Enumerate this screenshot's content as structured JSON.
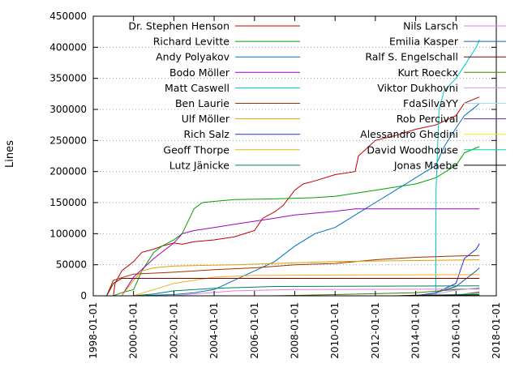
{
  "chart_data": {
    "type": "line",
    "title": "",
    "xlabel": "",
    "ylabel": "Lines",
    "xlim": [
      "1998-01-01",
      "2018-01-01"
    ],
    "ylim": [
      0,
      450000
    ],
    "x_ticks": [
      "1998-01-01",
      "2000-01-01",
      "2002-01-01",
      "2004-01-01",
      "2006-01-01",
      "2008-01-01",
      "2010-01-01",
      "2012-01-01",
      "2014-01-01",
      "2016-01-01",
      "2018-01-01"
    ],
    "y_ticks": [
      0,
      50000,
      100000,
      150000,
      200000,
      250000,
      300000,
      350000,
      400000,
      450000
    ],
    "y_tick_labels": [
      "0",
      "50000",
      "100000",
      "150000",
      "200000",
      "250000",
      "300000",
      "350000",
      "400000",
      "450000"
    ],
    "grid": "horizontal dotted",
    "legend_placement": "inside, top (two columns)",
    "series": [
      {
        "name": "Dr. Stephen Henson",
        "color": "#c00000",
        "points": [
          [
            "1999-01-01",
            0
          ],
          [
            "1999-02-01",
            20000
          ],
          [
            "1999-06-01",
            40000
          ],
          [
            "2000-01-01",
            55000
          ],
          [
            "2000-06-01",
            70000
          ],
          [
            "2001-01-01",
            75000
          ],
          [
            "2001-06-01",
            80000
          ],
          [
            "2002-01-01",
            85000
          ],
          [
            "2002-06-01",
            83000
          ],
          [
            "2003-01-01",
            87000
          ],
          [
            "2004-01-01",
            90000
          ],
          [
            "2005-01-01",
            95000
          ],
          [
            "2006-01-01",
            105000
          ],
          [
            "2006-06-01",
            125000
          ],
          [
            "2007-01-01",
            135000
          ],
          [
            "2007-06-01",
            145000
          ],
          [
            "2008-01-01",
            170000
          ],
          [
            "2008-06-01",
            180000
          ],
          [
            "2009-01-01",
            185000
          ],
          [
            "2010-01-01",
            195000
          ],
          [
            "2011-01-01",
            200000
          ],
          [
            "2011-03-01",
            225000
          ],
          [
            "2012-01-01",
            250000
          ],
          [
            "2013-01-01",
            258000
          ],
          [
            "2014-01-01",
            268000
          ],
          [
            "2015-01-01",
            275000
          ],
          [
            "2016-01-01",
            290000
          ],
          [
            "2016-06-01",
            310000
          ],
          [
            "2017-01-01",
            318000
          ],
          [
            "2017-03-01",
            320000
          ]
        ]
      },
      {
        "name": "Richard Levitte",
        "color": "#00a000",
        "points": [
          [
            "1999-01-01",
            0
          ],
          [
            "1999-06-01",
            5000
          ],
          [
            "2000-01-01",
            10000
          ],
          [
            "2000-06-01",
            40000
          ],
          [
            "2001-01-01",
            70000
          ],
          [
            "2001-06-01",
            80000
          ],
          [
            "2002-01-01",
            90000
          ],
          [
            "2002-06-01",
            100000
          ],
          [
            "2003-01-01",
            140000
          ],
          [
            "2003-06-01",
            150000
          ],
          [
            "2004-01-01",
            152000
          ],
          [
            "2005-01-01",
            155000
          ],
          [
            "2007-01-01",
            156000
          ],
          [
            "2009-01-01",
            158000
          ],
          [
            "2010-01-01",
            160000
          ],
          [
            "2011-01-01",
            165000
          ],
          [
            "2012-01-01",
            170000
          ],
          [
            "2013-01-01",
            175000
          ],
          [
            "2014-01-01",
            180000
          ],
          [
            "2015-01-01",
            190000
          ],
          [
            "2016-01-01",
            210000
          ],
          [
            "2016-06-01",
            230000
          ],
          [
            "2017-01-01",
            238000
          ],
          [
            "2017-03-01",
            240000
          ]
        ]
      },
      {
        "name": "Andy Polyakov",
        "color": "#0070c0",
        "points": [
          [
            "2000-01-01",
            0
          ],
          [
            "2001-01-01",
            1000
          ],
          [
            "2002-01-01",
            2000
          ],
          [
            "2003-01-01",
            5000
          ],
          [
            "2004-01-01",
            10000
          ],
          [
            "2005-01-01",
            25000
          ],
          [
            "2006-01-01",
            40000
          ],
          [
            "2007-01-01",
            55000
          ],
          [
            "2008-01-01",
            80000
          ],
          [
            "2009-01-01",
            100000
          ],
          [
            "2010-01-01",
            110000
          ],
          [
            "2011-01-01",
            130000
          ],
          [
            "2012-01-01",
            150000
          ],
          [
            "2013-01-01",
            170000
          ],
          [
            "2014-01-01",
            190000
          ],
          [
            "2015-01-01",
            210000
          ],
          [
            "2015-06-01",
            240000
          ],
          [
            "2016-01-01",
            270000
          ],
          [
            "2016-06-01",
            290000
          ],
          [
            "2017-01-01",
            305000
          ],
          [
            "2017-03-01",
            310000
          ]
        ]
      },
      {
        "name": "Bodo Möller",
        "color": "#a000c0",
        "points": [
          [
            "1999-06-01",
            0
          ],
          [
            "2000-01-01",
            30000
          ],
          [
            "2001-01-01",
            60000
          ],
          [
            "2002-01-01",
            85000
          ],
          [
            "2002-06-01",
            100000
          ],
          [
            "2003-01-01",
            105000
          ],
          [
            "2004-01-01",
            110000
          ],
          [
            "2005-01-01",
            115000
          ],
          [
            "2006-01-01",
            120000
          ],
          [
            "2007-01-01",
            125000
          ],
          [
            "2008-01-01",
            130000
          ],
          [
            "2009-01-01",
            133000
          ],
          [
            "2010-01-01",
            136000
          ],
          [
            "2011-01-01",
            140000
          ],
          [
            "2017-03-01",
            140000
          ]
        ]
      },
      {
        "name": "Matt Caswell",
        "color": "#00c8c8",
        "points": [
          [
            "2014-01-01",
            0
          ],
          [
            "2014-06-01",
            1000
          ],
          [
            "2015-01-01",
            3000
          ],
          [
            "2015-01-05",
            170000
          ],
          [
            "2015-03-01",
            300000
          ],
          [
            "2015-06-01",
            330000
          ],
          [
            "2016-01-01",
            350000
          ],
          [
            "2016-06-01",
            370000
          ],
          [
            "2017-01-01",
            400000
          ],
          [
            "2017-03-01",
            412000
          ]
        ]
      },
      {
        "name": "Ben Laurie",
        "color": "#a03000",
        "points": [
          [
            "1998-09-01",
            0
          ],
          [
            "1999-01-01",
            25000
          ],
          [
            "2000-01-01",
            35000
          ],
          [
            "2002-01-01",
            38000
          ],
          [
            "2004-01-01",
            42000
          ],
          [
            "2006-01-01",
            45000
          ],
          [
            "2008-01-01",
            50000
          ],
          [
            "2010-01-01",
            52000
          ],
          [
            "2012-01-01",
            58000
          ],
          [
            "2014-01-01",
            62000
          ],
          [
            "2016-01-01",
            64000
          ],
          [
            "2017-03-01",
            65000
          ]
        ]
      },
      {
        "name": "Ulf Möller",
        "color": "#e0a000",
        "points": [
          [
            "1999-06-01",
            0
          ],
          [
            "2000-01-01",
            25000
          ],
          [
            "2000-06-01",
            40000
          ],
          [
            "2001-01-01",
            45000
          ],
          [
            "2002-01-01",
            48000
          ],
          [
            "2005-01-01",
            50000
          ],
          [
            "2010-01-01",
            55000
          ],
          [
            "2017-03-01",
            58000
          ]
        ]
      },
      {
        "name": "Rich Salz",
        "color": "#2030e0",
        "points": [
          [
            "2014-01-01",
            0
          ],
          [
            "2015-01-01",
            5000
          ],
          [
            "2016-01-01",
            20000
          ],
          [
            "2016-06-01",
            60000
          ],
          [
            "2017-01-01",
            75000
          ],
          [
            "2017-03-01",
            84000
          ]
        ]
      },
      {
        "name": "Geoff Thorpe",
        "color": "#f0b020",
        "points": [
          [
            "2000-01-01",
            0
          ],
          [
            "2001-01-01",
            10000
          ],
          [
            "2002-01-01",
            20000
          ],
          [
            "2004-01-01",
            30000
          ],
          [
            "2006-01-01",
            33000
          ],
          [
            "2017-03-01",
            34000
          ]
        ]
      },
      {
        "name": "Lutz Jänicke",
        "color": "#008060",
        "points": [
          [
            "2000-01-01",
            0
          ],
          [
            "2001-01-01",
            3000
          ],
          [
            "2002-01-01",
            8000
          ],
          [
            "2004-01-01",
            12000
          ],
          [
            "2007-01-01",
            15000
          ],
          [
            "2017-03-01",
            16000
          ]
        ]
      },
      {
        "name": "Nils Larsch",
        "color": "#e080e0",
        "points": [
          [
            "2002-01-01",
            0
          ],
          [
            "2003-01-01",
            3000
          ],
          [
            "2005-01-01",
            8000
          ],
          [
            "2008-01-01",
            10000
          ],
          [
            "2017-03-01",
            11000
          ]
        ]
      },
      {
        "name": "Emilia Kasper",
        "color": "#1060a0",
        "points": [
          [
            "2014-01-01",
            0
          ],
          [
            "2015-01-01",
            5000
          ],
          [
            "2016-01-01",
            15000
          ],
          [
            "2017-01-01",
            40000
          ],
          [
            "2017-03-01",
            45000
          ]
        ]
      },
      {
        "name": "Ralf S. Engelschall",
        "color": "#800000",
        "points": [
          [
            "1998-09-01",
            0
          ],
          [
            "1999-01-01",
            20000
          ],
          [
            "1999-06-01",
            28000
          ],
          [
            "2017-03-01",
            28000
          ]
        ]
      },
      {
        "name": "Kurt Roeckx",
        "color": "#408000",
        "points": [
          [
            "2007-01-01",
            0
          ],
          [
            "2010-01-01",
            2000
          ],
          [
            "2014-01-01",
            5000
          ],
          [
            "2016-01-01",
            10000
          ],
          [
            "2017-03-01",
            12000
          ]
        ]
      },
      {
        "name": "Viktor Dukhovni",
        "color": "#d0a0e0",
        "points": [
          [
            "2014-01-01",
            0
          ],
          [
            "2015-01-01",
            3000
          ],
          [
            "2016-01-01",
            9000
          ],
          [
            "2017-03-01",
            13000
          ]
        ]
      },
      {
        "name": "FdaSilvaYY",
        "color": "#a0e0ff",
        "points": [
          [
            "2015-06-01",
            0
          ],
          [
            "2016-01-01",
            2000
          ],
          [
            "2017-03-01",
            5000
          ]
        ]
      },
      {
        "name": "Rob Percival",
        "color": "#7020a0",
        "points": [
          [
            "2016-01-01",
            0
          ],
          [
            "2016-06-01",
            3000
          ],
          [
            "2017-03-01",
            6000
          ]
        ]
      },
      {
        "name": "Alessandro Ghedini",
        "color": "#f0f000",
        "points": [
          [
            "2015-06-01",
            0
          ],
          [
            "2016-01-01",
            2000
          ],
          [
            "2017-03-01",
            4000
          ]
        ]
      },
      {
        "name": "David Woodhouse",
        "color": "#00d0b0",
        "points": [
          [
            "2014-01-01",
            0
          ],
          [
            "2015-01-01",
            1000
          ],
          [
            "2017-03-01",
            3000
          ]
        ]
      },
      {
        "name": "Jonas Maebe",
        "color": "#000000",
        "points": [
          [
            "2013-01-01",
            0
          ],
          [
            "2014-01-01",
            1000
          ],
          [
            "2017-03-01",
            1500
          ]
        ]
      }
    ]
  }
}
